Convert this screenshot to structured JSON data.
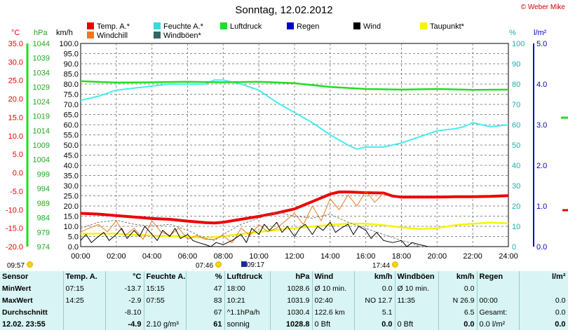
{
  "title": "Sonntag, 12.02.2012",
  "copyright": "© Weber Mike",
  "legend": [
    {
      "label": "Temp. A.*",
      "color": "#ee0000"
    },
    {
      "label": "Feuchte A.*",
      "color": "#33dddd"
    },
    {
      "label": "Luftdruck",
      "color": "#22dd22"
    },
    {
      "label": "Regen",
      "color": "#0000cc"
    },
    {
      "label": "Wind",
      "color": "#000000"
    },
    {
      "label": "Taupunkt*",
      "color": "#f5f500"
    },
    {
      "label": "Windchill",
      "color": "#f07820"
    },
    {
      "label": "Windböen*",
      "color": "#336666"
    }
  ],
  "axis_units": {
    "temp": "°C",
    "pressure": "hPa",
    "wind": "km/h",
    "humidity": "%",
    "rain": "l/m²"
  },
  "time_markers": {
    "left": "09:57",
    "sunrise": "07:46",
    "moonrise": "09:17",
    "sunset": "17:44"
  },
  "chart_data": {
    "type": "line",
    "x_ticks": [
      "00:00",
      "02:00",
      "04:00",
      "06:00",
      "08:00",
      "10:00",
      "12:00",
      "14:00",
      "16:00",
      "18:00",
      "20:00",
      "22:00",
      "24:00"
    ],
    "xlim": [
      0,
      24
    ],
    "axes": {
      "temp": {
        "ticks": [
          "35.0",
          "30.0",
          "25.0",
          "20.0",
          "15.0",
          "10.0",
          "5.0",
          "0.0",
          "-5.0",
          "-10.0",
          "-15.0",
          "-20.0"
        ],
        "range": [
          -20,
          35
        ],
        "color": "#ee0000"
      },
      "pressure": {
        "ticks": [
          "1044",
          "1039",
          "1034",
          "1029",
          "1024",
          "1019",
          "1014",
          "1009",
          "1004",
          "999",
          "994",
          "989",
          "984",
          "979",
          "974"
        ],
        "range": [
          974,
          1044
        ],
        "color": "#22aa22"
      },
      "wind": {
        "ticks": [
          "100.0",
          "95.0",
          "90.0",
          "85.0",
          "80.0",
          "75.0",
          "70.0",
          "65.0",
          "60.0",
          "55.0",
          "50.0",
          "45.0",
          "40.0",
          "35.0",
          "30.0",
          "25.0",
          "20.0",
          "15.0",
          "10.0",
          "5.0",
          "0.0"
        ],
        "range": [
          0,
          100
        ],
        "color": "#000000"
      },
      "humidity": {
        "ticks": [
          "100",
          "90",
          "80",
          "70",
          "60",
          "50",
          "40",
          "30",
          "20",
          "10",
          "0"
        ],
        "range": [
          0,
          100
        ],
        "color": "#22aaaa"
      },
      "rain": {
        "ticks": [
          "5.0",
          "4.0",
          "3.0",
          "2.0",
          "1.0",
          "0.0"
        ],
        "range": [
          0,
          5
        ],
        "color": "#0000cc"
      }
    },
    "series": [
      {
        "name": "Feuchte A.*",
        "axis": "humidity",
        "color": "#44eeee",
        "width": 2,
        "x": [
          0,
          1,
          2,
          3,
          4,
          5,
          6,
          7,
          7.5,
          8,
          9,
          10,
          11,
          12,
          13,
          14,
          15,
          15.5,
          16,
          17,
          18,
          19,
          20,
          21,
          21.5,
          22,
          23,
          24
        ],
        "y": [
          72,
          74,
          77,
          78,
          79,
          80,
          80,
          80,
          82,
          82,
          80,
          77,
          71,
          66,
          61,
          55,
          50,
          48,
          49,
          49,
          51,
          54,
          57,
          58,
          59,
          61,
          59,
          60
        ]
      },
      {
        "name": "Luftdruck",
        "axis": "pressure",
        "color": "#22dd22",
        "width": 2.5,
        "x": [
          0,
          2,
          4,
          6,
          8,
          10,
          12,
          14,
          16,
          18,
          20,
          22,
          24
        ],
        "y": [
          1031,
          1030.5,
          1030.6,
          1030.8,
          1030.6,
          1030.8,
          1030.3,
          1029,
          1028.3,
          1028.1,
          1028.3,
          1028,
          1028.1
        ]
      },
      {
        "name": "Taupunkt*",
        "axis": "temp",
        "color": "#f5f500",
        "width": 2.5,
        "x": [
          0,
          2,
          3,
          4,
          6,
          7,
          8,
          10,
          12,
          14,
          15,
          16,
          17,
          18,
          19,
          20,
          21,
          22,
          23,
          24
        ],
        "y": [
          -16.5,
          -16.5,
          -16.8,
          -17,
          -17.3,
          -17.6,
          -17.2,
          -16,
          -15,
          -14.1,
          -13.8,
          -13.8,
          -14.2,
          -14.8,
          -15.2,
          -15,
          -14.2,
          -13.8,
          -13.5,
          -13.7
        ]
      },
      {
        "name": "Temp. A.*",
        "axis": "temp",
        "color": "#ee0000",
        "width": 4,
        "x": [
          0,
          1,
          2,
          3,
          4,
          5,
          6,
          7,
          7.5,
          8,
          9,
          10,
          11,
          12,
          13,
          14,
          14.5,
          15,
          16,
          17,
          17.5,
          18,
          19,
          20,
          21,
          22,
          23,
          24
        ],
        "y": [
          -11,
          -11.2,
          -11.6,
          -12,
          -12.4,
          -12.6,
          -13.1,
          -13.5,
          -13.6,
          -13.4,
          -12.6,
          -11.8,
          -10.9,
          -9.8,
          -7.8,
          -5.8,
          -5.2,
          -5.2,
          -5.4,
          -5.5,
          -6.3,
          -6.6,
          -6.6,
          -6.6,
          -6.5,
          -6.5,
          -6.4,
          -6.2
        ]
      },
      {
        "name": "Windchill",
        "axis": "temp",
        "color": "#f07820",
        "width": 1,
        "x": [
          0,
          0.5,
          1,
          1.5,
          2,
          2.5,
          3,
          3.5,
          4,
          4.5,
          5,
          5.5,
          6,
          6.5,
          7,
          7.5,
          8,
          8.5,
          9,
          9.5,
          10,
          10.5,
          11,
          11.5,
          12,
          12.5,
          13,
          13.5,
          14,
          14.5,
          15,
          15.5,
          16,
          16.5,
          17
        ],
        "y": [
          -16,
          -15,
          -14,
          -16,
          -13,
          -17,
          -15,
          -18,
          -13,
          -16,
          -17,
          -15,
          -18,
          -17,
          -18,
          -18,
          -17,
          -19,
          -15,
          -17,
          -14,
          -16,
          -15,
          -13,
          -11,
          -14,
          -9,
          -13,
          -7,
          -10,
          -6,
          -9,
          -5,
          -8,
          -5.5
        ]
      },
      {
        "name": "Windböen*",
        "axis": "wind",
        "color": "#777777",
        "width": 1,
        "dash": "3,2",
        "x": [
          0,
          1,
          2,
          3,
          4,
          5,
          6,
          7,
          7.5,
          8,
          9,
          10,
          11,
          12,
          13,
          14,
          15,
          16,
          17,
          18,
          18.5,
          19,
          20
        ],
        "y": [
          9,
          12,
          13,
          11,
          10,
          11,
          8,
          4,
          3,
          6,
          11,
          14,
          17,
          15,
          14,
          16,
          12,
          9,
          6,
          3,
          2,
          0,
          0
        ]
      },
      {
        "name": "Wind",
        "axis": "wind",
        "color": "#000000",
        "width": 1,
        "x": [
          0,
          0.3,
          0.6,
          1,
          1.3,
          1.6,
          2,
          2.3,
          2.6,
          3,
          3.3,
          3.6,
          4,
          4.3,
          4.6,
          5,
          5.3,
          5.6,
          6,
          6.3,
          6.6,
          7,
          7.3,
          7.6,
          8,
          8.5,
          9,
          9.3,
          9.6,
          10,
          10.3,
          10.6,
          11,
          11.3,
          11.6,
          12,
          12.3,
          12.6,
          13,
          13.3,
          13.6,
          14,
          14.3,
          14.6,
          15,
          15.3,
          15.6,
          16,
          16.3,
          16.6,
          17,
          17.5,
          18,
          18.3,
          18.6,
          19,
          19.5,
          20
        ],
        "y": [
          3,
          6,
          2,
          5,
          7,
          3,
          6,
          9,
          4,
          8,
          5,
          10,
          6,
          3,
          8,
          5,
          9,
          4,
          6,
          3,
          2,
          1,
          0,
          2,
          1,
          3,
          6,
          2,
          9,
          6,
          11,
          8,
          12,
          7,
          10,
          5,
          9,
          11,
          6,
          10,
          8,
          12,
          7,
          9,
          11,
          6,
          10,
          8,
          4,
          7,
          3,
          2,
          3,
          0,
          2,
          1,
          0,
          0
        ]
      }
    ]
  },
  "stats": {
    "headers": [
      "Sensor",
      "Temp. A.",
      "°C",
      "Feuchte A.",
      "%",
      "Luftdruck",
      "hPa",
      "Wind",
      "km/h",
      "Windböen",
      "km/h",
      "Regen",
      "l/m²"
    ],
    "rows": [
      [
        "MinWert",
        "07:15",
        "-13.7",
        "15:15",
        "47",
        "18:00",
        "1028.6",
        "Ø 10 min.",
        "0.0",
        "Ø 10 min.",
        "0.0",
        "",
        ""
      ],
      [
        "MaxWert",
        "14:25",
        "-2.9",
        "07:55",
        "83",
        "10:21",
        "1031.9",
        "02:40",
        "NO 12.7",
        "11:35",
        "N 26.9",
        "00:00",
        "0.0"
      ],
      [
        "Durchschnitt",
        "",
        "-8.10",
        "",
        "67",
        "^1.1hPa/h",
        "1030.4",
        "122.6 km",
        "5.1",
        "",
        "6.5",
        "Gesamt:",
        "0.0"
      ],
      [
        "12.02. 23:55",
        "",
        "-4.9",
        "2.10 g/m³",
        "61",
        "sonnig",
        "1028.8",
        "0 Bft",
        "0.0",
        "0 Bft",
        "0.0",
        "0.0 l/m²",
        "0.0"
      ]
    ]
  }
}
